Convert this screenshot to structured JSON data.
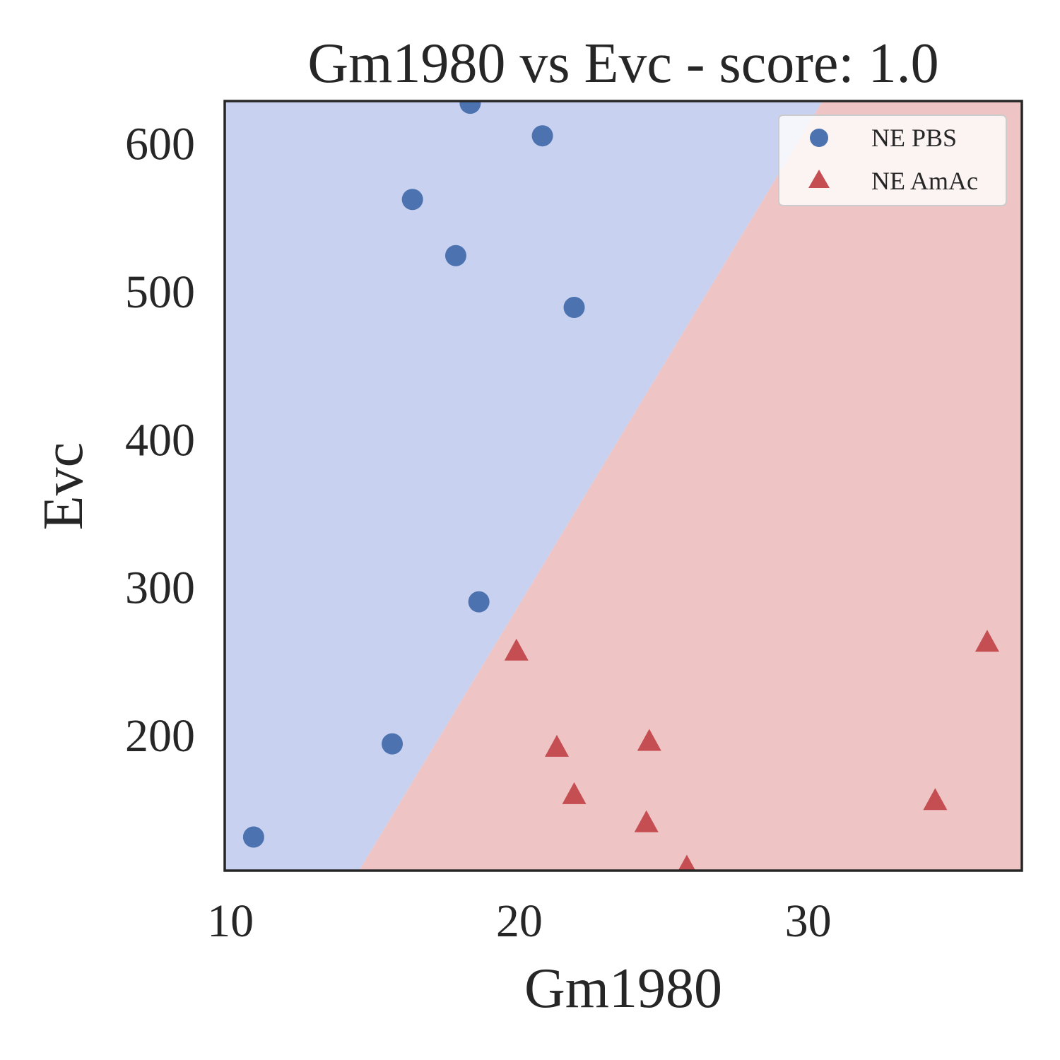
{
  "chart_data": {
    "type": "scatter",
    "title": "Gm1980 vs Evc - score: 1.0",
    "xlabel": "Gm1980",
    "ylabel": "Evc",
    "xlim": [
      9.8,
      37.4
    ],
    "ylim": [
      108.3,
      628.5
    ],
    "x_ticks": [
      10,
      20,
      30
    ],
    "y_ticks": [
      200,
      300,
      400,
      500,
      600
    ],
    "grid": false,
    "legend_position": "top-right",
    "decision_boundary": {
      "points": [
        [
          14.45,
          108.3
        ],
        [
          30.5,
          628.5
        ]
      ],
      "left_region_color": "#c8d1f0",
      "right_region_color": "#eec4c4"
    },
    "series": [
      {
        "name": "NE PBS",
        "marker": "circle",
        "color": "#4c72b0",
        "points": [
          [
            18.3,
            627
          ],
          [
            20.8,
            605
          ],
          [
            16.3,
            562
          ],
          [
            17.8,
            524
          ],
          [
            21.9,
            489
          ],
          [
            18.6,
            290
          ],
          [
            15.6,
            194
          ],
          [
            10.8,
            131
          ]
        ]
      },
      {
        "name": "NE AmAc",
        "marker": "triangle",
        "color": "#c44e52",
        "points": [
          [
            19.9,
            256
          ],
          [
            21.3,
            191
          ],
          [
            24.5,
            195
          ],
          [
            21.9,
            159
          ],
          [
            24.4,
            140
          ],
          [
            25.8,
            110
          ],
          [
            34.4,
            155
          ],
          [
            36.2,
            262
          ]
        ]
      }
    ]
  }
}
